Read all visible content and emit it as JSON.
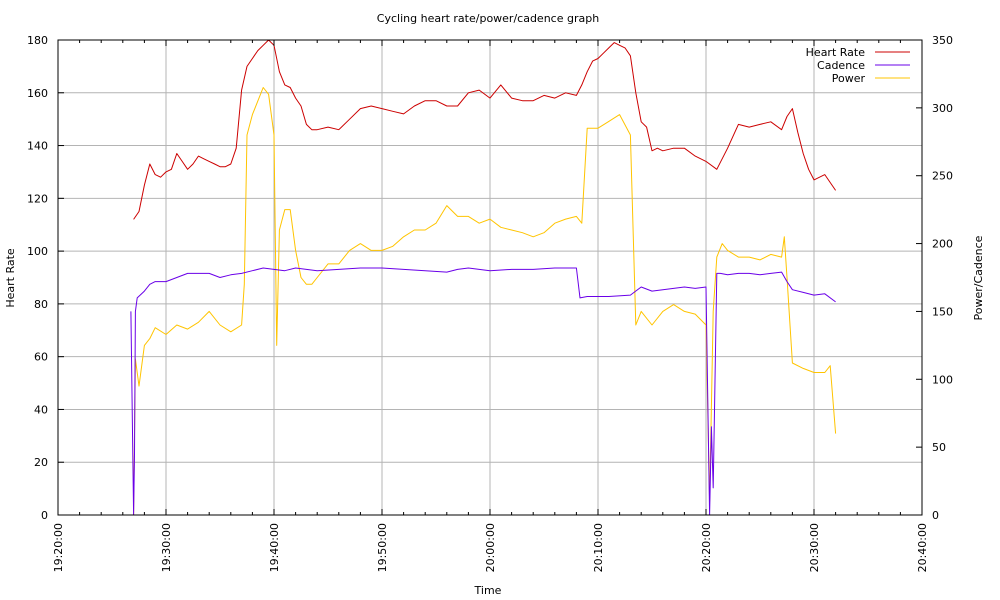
{
  "chart_data": {
    "type": "line",
    "title": "Cycling heart rate/power/cadence graph",
    "xlabel": "Time",
    "ylabel": "Heart Rate",
    "y2label": "Power/Cadence",
    "x_range": [
      "19:20:00",
      "20:40:00"
    ],
    "x_ticks": [
      "19:20:00",
      "19:30:00",
      "19:40:00",
      "19:50:00",
      "20:00:00",
      "20:10:00",
      "20:20:00",
      "20:30:00",
      "20:40:00"
    ],
    "ylim": [
      0,
      180
    ],
    "y_ticks": [
      0,
      20,
      40,
      60,
      80,
      100,
      120,
      140,
      160,
      180
    ],
    "y2lim": [
      0,
      350
    ],
    "y2_ticks": [
      0,
      50,
      100,
      150,
      200,
      250,
      300,
      350
    ],
    "grid": true,
    "legend_position": "top-right",
    "series": [
      {
        "name": "Heart Rate",
        "axis": "left",
        "color": "#cc0000",
        "x": [
          "19:27:00",
          "19:27:30",
          "19:28:00",
          "19:28:30",
          "19:29:00",
          "19:29:30",
          "19:30:00",
          "19:30:30",
          "19:31:00",
          "19:31:30",
          "19:32:00",
          "19:32:30",
          "19:33:00",
          "19:33:30",
          "19:34:00",
          "19:34:30",
          "19:35:00",
          "19:35:30",
          "19:36:00",
          "19:36:30",
          "19:37:00",
          "19:37:30",
          "19:38:00",
          "19:38:30",
          "19:39:00",
          "19:39:30",
          "19:40:00",
          "19:40:30",
          "19:41:00",
          "19:41:30",
          "19:42:00",
          "19:42:30",
          "19:43:00",
          "19:43:30",
          "19:44:00",
          "19:45:00",
          "19:46:00",
          "19:47:00",
          "19:48:00",
          "19:49:00",
          "19:50:00",
          "19:51:00",
          "19:52:00",
          "19:53:00",
          "19:54:00",
          "19:55:00",
          "19:56:00",
          "19:57:00",
          "19:58:00",
          "19:59:00",
          "20:00:00",
          "20:01:00",
          "20:02:00",
          "20:03:00",
          "20:04:00",
          "20:05:00",
          "20:06:00",
          "20:07:00",
          "20:08:00",
          "20:08:30",
          "20:09:00",
          "20:09:30",
          "20:10:00",
          "20:10:30",
          "20:11:00",
          "20:11:30",
          "20:12:00",
          "20:12:30",
          "20:13:00",
          "20:13:30",
          "20:14:00",
          "20:14:30",
          "20:15:00",
          "20:15:30",
          "20:16:00",
          "20:17:00",
          "20:18:00",
          "20:19:00",
          "20:20:00",
          "20:21:00",
          "20:22:00",
          "20:23:00",
          "20:24:00",
          "20:25:00",
          "20:26:00",
          "20:27:00",
          "20:27:30",
          "20:28:00",
          "20:28:30",
          "20:29:00",
          "20:29:30",
          "20:30:00",
          "20:31:00",
          "20:32:00"
        ],
        "values": [
          112,
          115,
          125,
          133,
          129,
          128,
          130,
          131,
          137,
          134,
          131,
          133,
          136,
          135,
          134,
          133,
          132,
          132,
          133,
          139,
          161,
          170,
          173,
          176,
          178,
          180,
          178,
          168,
          163,
          162,
          158,
          155,
          148,
          146,
          146,
          147,
          146,
          150,
          154,
          155,
          154,
          153,
          152,
          155,
          157,
          157,
          155,
          155,
          160,
          161,
          158,
          163,
          158,
          157,
          157,
          159,
          158,
          160,
          159,
          163,
          168,
          172,
          173,
          175,
          177,
          179,
          178,
          177,
          174,
          160,
          149,
          147,
          138,
          139,
          138,
          139,
          139,
          136,
          134,
          131,
          139,
          148,
          147,
          148,
          149,
          146,
          151,
          154,
          145,
          137,
          131,
          127,
          129,
          123
        ]
      },
      {
        "name": "Cadence",
        "axis": "right",
        "color": "#6a00e8",
        "x": [
          "19:26:45",
          "19:27:00",
          "19:27:05",
          "19:27:10",
          "19:27:20",
          "19:28:00",
          "19:28:30",
          "19:29:00",
          "19:30:00",
          "19:31:00",
          "19:32:00",
          "19:33:00",
          "19:34:00",
          "19:35:00",
          "19:36:00",
          "19:37:00",
          "19:38:00",
          "19:39:00",
          "19:40:00",
          "19:41:00",
          "19:42:00",
          "19:44:00",
          "19:46:00",
          "19:48:00",
          "19:50:00",
          "19:52:00",
          "19:54:00",
          "19:56:00",
          "19:57:00",
          "19:58:00",
          "20:00:00",
          "20:02:00",
          "20:04:00",
          "20:06:00",
          "20:08:00",
          "20:08:20",
          "20:09:00",
          "20:11:00",
          "20:13:00",
          "20:14:00",
          "20:15:00",
          "20:16:00",
          "20:17:00",
          "20:18:00",
          "20:19:00",
          "20:20:00",
          "20:20:20",
          "20:20:30",
          "20:20:40",
          "20:21:00",
          "20:21:20",
          "20:22:00",
          "20:23:00",
          "20:24:00",
          "20:25:00",
          "20:26:00",
          "20:27:00",
          "20:27:30",
          "20:28:00",
          "20:29:00",
          "20:30:00",
          "20:31:00",
          "20:32:00"
        ],
        "values": [
          150,
          0,
          45,
          150,
          160,
          165,
          170,
          172,
          172,
          175,
          178,
          178,
          178,
          175,
          177,
          178,
          180,
          182,
          181,
          180,
          182,
          180,
          181,
          182,
          182,
          181,
          180,
          179,
          181,
          182,
          180,
          181,
          181,
          182,
          182,
          160,
          161,
          161,
          162,
          168,
          165,
          166,
          167,
          168,
          167,
          168,
          0,
          65,
          20,
          178,
          178,
          177,
          178,
          178,
          177,
          178,
          179,
          172,
          166,
          164,
          162,
          163,
          157
        ]
      },
      {
        "name": "Power",
        "axis": "right",
        "color": "#ffc400",
        "x": [
          "19:27:00",
          "19:27:05",
          "19:27:10",
          "19:27:30",
          "19:28:00",
          "19:28:30",
          "19:29:00",
          "19:30:00",
          "19:31:00",
          "19:32:00",
          "19:33:00",
          "19:34:00",
          "19:35:00",
          "19:36:00",
          "19:37:00",
          "19:37:15",
          "19:37:30",
          "19:38:00",
          "19:38:30",
          "19:39:00",
          "19:39:30",
          "19:40:00",
          "19:40:15",
          "19:40:30",
          "19:41:00",
          "19:41:30",
          "19:42:00",
          "19:42:30",
          "19:43:00",
          "19:43:30",
          "19:44:00",
          "19:45:00",
          "19:46:00",
          "19:47:00",
          "19:48:00",
          "19:49:00",
          "19:50:00",
          "19:51:00",
          "19:52:00",
          "19:53:00",
          "19:54:00",
          "19:55:00",
          "19:56:00",
          "19:57:00",
          "19:58:00",
          "19:59:00",
          "20:00:00",
          "20:01:00",
          "20:02:00",
          "20:03:00",
          "20:04:00",
          "20:05:00",
          "20:06:00",
          "20:07:00",
          "20:08:00",
          "20:08:30",
          "20:09:00",
          "20:10:00",
          "20:11:00",
          "20:12:00",
          "20:13:00",
          "20:13:30",
          "20:14:00",
          "20:15:00",
          "20:16:00",
          "20:17:00",
          "20:18:00",
          "20:19:00",
          "20:20:00",
          "20:20:20",
          "20:20:40",
          "20:21:00",
          "20:21:30",
          "20:22:00",
          "20:23:00",
          "20:24:00",
          "20:25:00",
          "20:26:00",
          "20:27:00",
          "20:27:15",
          "20:27:30",
          "20:28:00",
          "20:29:00",
          "20:30:00",
          "20:31:00",
          "20:31:30",
          "20:32:00"
        ],
        "values": [
          0,
          60,
          115,
          95,
          125,
          130,
          138,
          133,
          140,
          137,
          142,
          150,
          140,
          135,
          140,
          170,
          280,
          295,
          305,
          315,
          310,
          280,
          125,
          210,
          225,
          225,
          195,
          175,
          170,
          170,
          175,
          185,
          185,
          195,
          200,
          195,
          195,
          198,
          205,
          210,
          210,
          215,
          228,
          220,
          220,
          215,
          218,
          212,
          210,
          208,
          205,
          208,
          215,
          218,
          220,
          215,
          285,
          285,
          290,
          295,
          280,
          140,
          150,
          140,
          150,
          155,
          150,
          148,
          140,
          10,
          150,
          190,
          200,
          195,
          190,
          190,
          188,
          192,
          190,
          205,
          175,
          112,
          108,
          105,
          105,
          110,
          60
        ]
      }
    ]
  }
}
